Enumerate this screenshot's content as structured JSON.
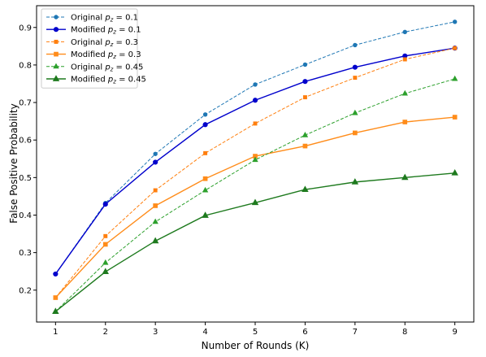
{
  "chart_data": {
    "type": "line",
    "xlabel": "Number of Rounds (K)",
    "ylabel": "False Positive Probability",
    "x": [
      1,
      2,
      3,
      4,
      5,
      6,
      7,
      8,
      9
    ],
    "xlim": [
      0.62,
      9.38
    ],
    "ylim": [
      0.115,
      0.958
    ],
    "xticks": [
      "1",
      "2",
      "3",
      "4",
      "5",
      "6",
      "7",
      "8",
      "9"
    ],
    "yticks": [
      "0.2",
      "0.3",
      "0.4",
      "0.5",
      "0.6",
      "0.7",
      "0.8",
      "0.9"
    ],
    "ytick_values": [
      0.2,
      0.3,
      0.4,
      0.5,
      0.6,
      0.7,
      0.8,
      0.9
    ],
    "grid": false,
    "legend_position": "top-left",
    "series": [
      {
        "name": "Original",
        "pz": "0.1",
        "color": "#1f77b4",
        "style": "dashed",
        "marker": "circle",
        "values": [
          0.243,
          0.432,
          0.563,
          0.668,
          0.748,
          0.801,
          0.853,
          0.888,
          0.915
        ]
      },
      {
        "name": "Modified",
        "pz": "0.1",
        "color": "#0000cc",
        "style": "solid",
        "marker": "circle",
        "values": [
          0.243,
          0.429,
          0.541,
          0.641,
          0.706,
          0.756,
          0.794,
          0.824,
          0.845
        ]
      },
      {
        "name": "Original",
        "pz": "0.3",
        "color": "#ff7f0e",
        "style": "dashed",
        "marker": "square",
        "values": [
          0.18,
          0.344,
          0.466,
          0.565,
          0.644,
          0.714,
          0.766,
          0.815,
          0.845
        ]
      },
      {
        "name": "Modified",
        "pz": "0.3",
        "color": "#ff8c1a",
        "style": "solid",
        "marker": "square",
        "values": [
          0.18,
          0.322,
          0.425,
          0.497,
          0.557,
          0.584,
          0.619,
          0.648,
          0.661
        ]
      },
      {
        "name": "Original",
        "pz": "0.45",
        "color": "#2ca02c",
        "style": "dashed",
        "marker": "triangle",
        "values": [
          0.143,
          0.273,
          0.382,
          0.466,
          0.547,
          0.613,
          0.672,
          0.724,
          0.763
        ]
      },
      {
        "name": "Modified",
        "pz": "0.45",
        "color": "#1e7a1e",
        "style": "solid",
        "marker": "triangle",
        "values": [
          0.143,
          0.249,
          0.331,
          0.399,
          0.433,
          0.468,
          0.488,
          0.5,
          0.512
        ]
      }
    ]
  }
}
